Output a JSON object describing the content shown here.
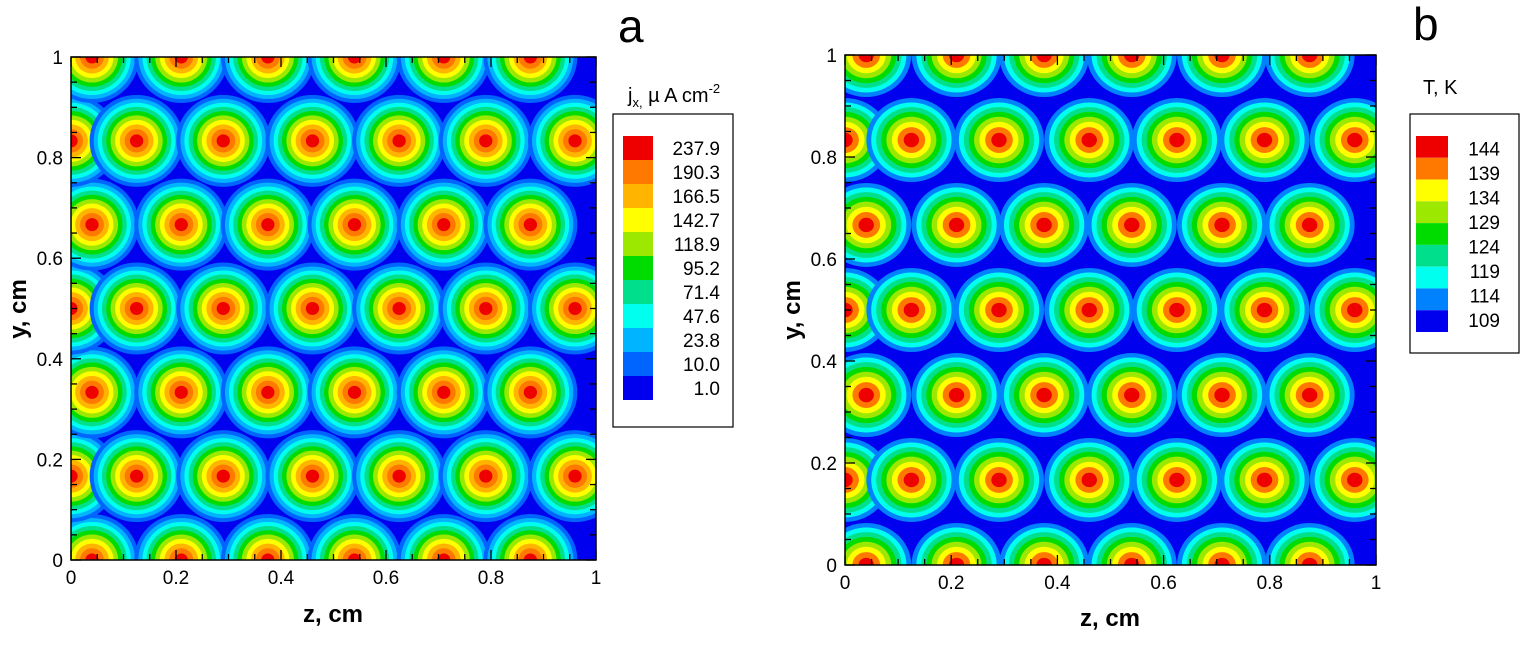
{
  "chart_data": [
    {
      "type": "heatmap",
      "panel_label": "a",
      "xlabel": "z, cm",
      "ylabel": "y, cm",
      "xlim": [
        0,
        1
      ],
      "ylim": [
        0,
        1
      ],
      "x_ticks": [
        "0",
        "0.2",
        "0.4",
        "0.6",
        "0.8",
        "1"
      ],
      "y_ticks": [
        "0",
        "0.2",
        "0.4",
        "0.6",
        "0.8",
        "1"
      ],
      "legend": {
        "title_main": "j",
        "title_sub": "x,",
        "title_rest": " µ A cm",
        "title_sup": "-2",
        "levels": [
          "237.9",
          "190.3",
          "166.5",
          "142.7",
          "118.9",
          "95.2",
          "71.4",
          "47.6",
          "23.8",
          "10.0",
          "1.0"
        ],
        "colors": [
          "#ee0000",
          "#ff7800",
          "#ffb400",
          "#ffff00",
          "#9ce800",
          "#00dc00",
          "#00e08c",
          "#00ffee",
          "#00b4ff",
          "#0064ff",
          "#0000ee"
        ],
        "placement": "right"
      },
      "spot_centers": {
        "rows_y": [
          0,
          0.1667,
          0.3333,
          0.5,
          0.6667,
          0.8333,
          1
        ],
        "even_row_x": [
          0.04,
          0.21,
          0.375,
          0.54,
          0.71,
          0.875
        ],
        "odd_row_x": [
          0,
          0.125,
          0.29,
          0.46,
          0.625,
          0.79,
          0.96
        ]
      },
      "background_color": "#0000ee"
    },
    {
      "type": "heatmap",
      "panel_label": "b",
      "xlabel": "z, cm",
      "ylabel": "y, cm",
      "xlim": [
        0,
        1
      ],
      "ylim": [
        0,
        1
      ],
      "x_ticks": [
        "0",
        "0.2",
        "0.4",
        "0.6",
        "0.8",
        "1"
      ],
      "y_ticks": [
        "0",
        "0.2",
        "0.4",
        "0.6",
        "0.8",
        "1"
      ],
      "legend": {
        "title": "T, K",
        "levels": [
          "144",
          "139",
          "134",
          "129",
          "124",
          "119",
          "114",
          "109"
        ],
        "colors": [
          "#ee0000",
          "#ff7800",
          "#ffff00",
          "#9ce800",
          "#00dc00",
          "#00e08c",
          "#00ffee",
          "#0082ff",
          "#0000ee"
        ],
        "placement": "right"
      },
      "spot_centers": {
        "rows_y": [
          0,
          0.1667,
          0.3333,
          0.5,
          0.6667,
          0.8333,
          1
        ],
        "even_row_x": [
          0.04,
          0.21,
          0.375,
          0.54,
          0.71,
          0.875
        ],
        "odd_row_x": [
          0,
          0.125,
          0.29,
          0.46,
          0.625,
          0.79,
          0.96
        ]
      },
      "background_color": "#0000ee"
    }
  ]
}
